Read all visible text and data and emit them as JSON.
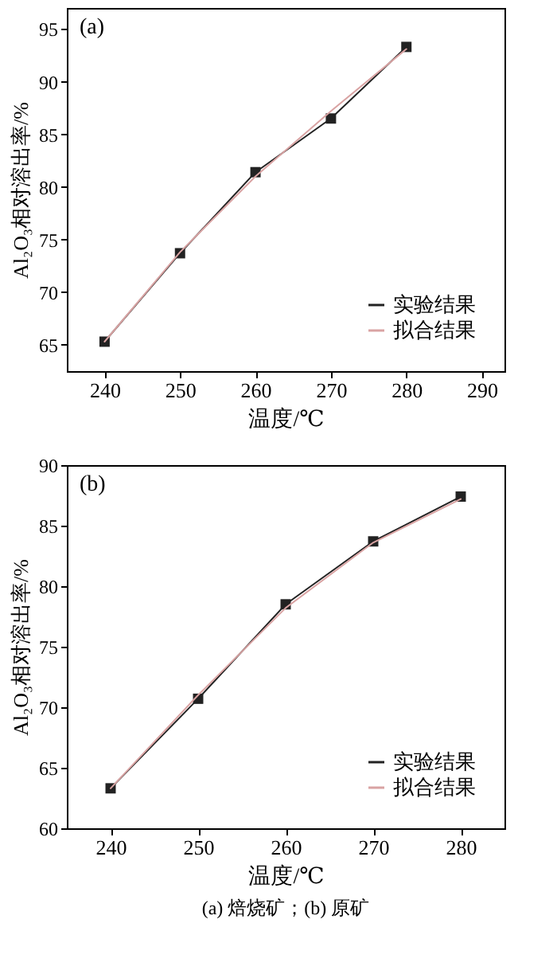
{
  "chart_data": [
    {
      "type": "line",
      "annotations": [
        "(a)"
      ],
      "xlabel": "温度/℃",
      "ylabel": "Al₂O₃相对溶出率/%",
      "x": [
        240,
        250,
        260,
        270,
        280
      ],
      "xlim": [
        235,
        293
      ],
      "xticks": [
        240,
        250,
        260,
        270,
        280,
        290
      ],
      "ylim": [
        62.5,
        97
      ],
      "yticks": [
        65,
        70,
        75,
        80,
        85,
        90,
        95
      ],
      "grid": false,
      "legend": "bottom right",
      "series": [
        {
          "name": "实验结果",
          "color": "#222222",
          "marker": "square",
          "values": [
            65.3,
            73.7,
            81.4,
            86.5,
            93.3
          ]
        },
        {
          "name": "拟合结果",
          "color": "#d9a3a3",
          "marker": "none",
          "values": [
            65.3,
            73.8,
            81.0,
            87.2,
            93.1
          ]
        }
      ]
    },
    {
      "type": "line",
      "annotations": [
        "(b)",
        "(a) 焙烧矿；(b) 原矿"
      ],
      "xlabel": "温度/℃",
      "ylabel": "Al₂O₃相对溶出率/%",
      "x": [
        240,
        250,
        260,
        270,
        280
      ],
      "xlim": [
        235,
        285
      ],
      "xticks": [
        240,
        250,
        260,
        270,
        280
      ],
      "ylim": [
        60,
        90
      ],
      "yticks": [
        60,
        65,
        70,
        75,
        80,
        85,
        90
      ],
      "grid": false,
      "legend": "bottom right",
      "series": [
        {
          "name": "实验结果",
          "color": "#222222",
          "marker": "square",
          "values": [
            63.3,
            70.7,
            78.5,
            83.7,
            87.4
          ]
        },
        {
          "name": "拟合结果",
          "color": "#d9a3a3",
          "marker": "none",
          "values": [
            63.3,
            71.0,
            78.2,
            83.6,
            87.2
          ]
        }
      ]
    }
  ]
}
